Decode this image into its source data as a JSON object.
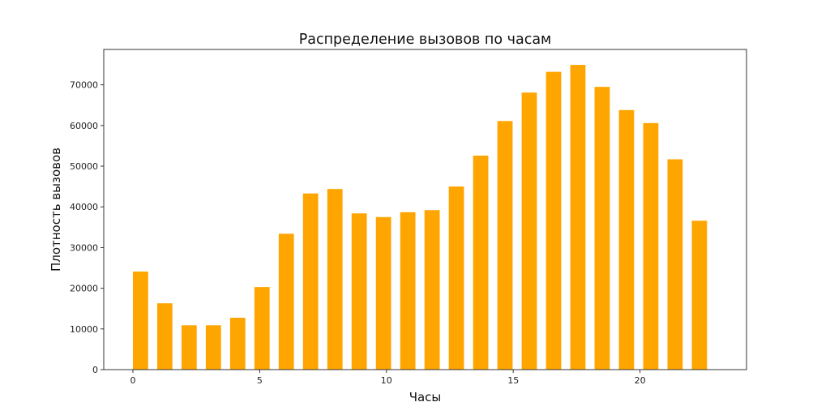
{
  "chart_data": {
    "type": "bar",
    "title": "Распределение вызовов по часам",
    "xlabel": "Часы",
    "ylabel": "Плотность вызовов",
    "categories": [
      0,
      1,
      2,
      3,
      4,
      5,
      6,
      7,
      8,
      9,
      10,
      11,
      12,
      13,
      14,
      15,
      16,
      17,
      18,
      19,
      20,
      21,
      22,
      23
    ],
    "bar_positions": [
      0,
      0.958,
      1.917,
      2.875,
      3.833,
      4.792,
      5.75,
      6.708,
      7.667,
      8.625,
      9.583,
      10.542,
      11.5,
      12.458,
      13.417,
      14.375,
      15.333,
      16.292,
      17.25,
      18.208,
      19.167,
      20.125,
      21.083,
      22.042
    ],
    "bar_width": 0.6,
    "bar_align": "edge",
    "values": [
      24100,
      16300,
      10900,
      10900,
      12750,
      20300,
      33400,
      43300,
      44400,
      38400,
      37500,
      38700,
      39200,
      45000,
      52600,
      61100,
      68100,
      73200,
      74900,
      69500,
      63800,
      60600,
      51700,
      36600
    ],
    "xlim": [
      -1.15,
      24.2
    ],
    "ylim": [
      0,
      78700
    ],
    "xticks": [
      0,
      5,
      10,
      15,
      20
    ],
    "xtick_labels": [
      "0",
      "5",
      "10",
      "15",
      "20"
    ],
    "yticks": [
      0,
      10000,
      20000,
      30000,
      40000,
      50000,
      60000,
      70000
    ],
    "ytick_labels": [
      "0",
      "10000",
      "20000",
      "30000",
      "40000",
      "50000",
      "60000",
      "70000"
    ],
    "grid": false,
    "legend": null,
    "colors": {
      "bar": "#ffa500",
      "axes": "#333333"
    }
  }
}
